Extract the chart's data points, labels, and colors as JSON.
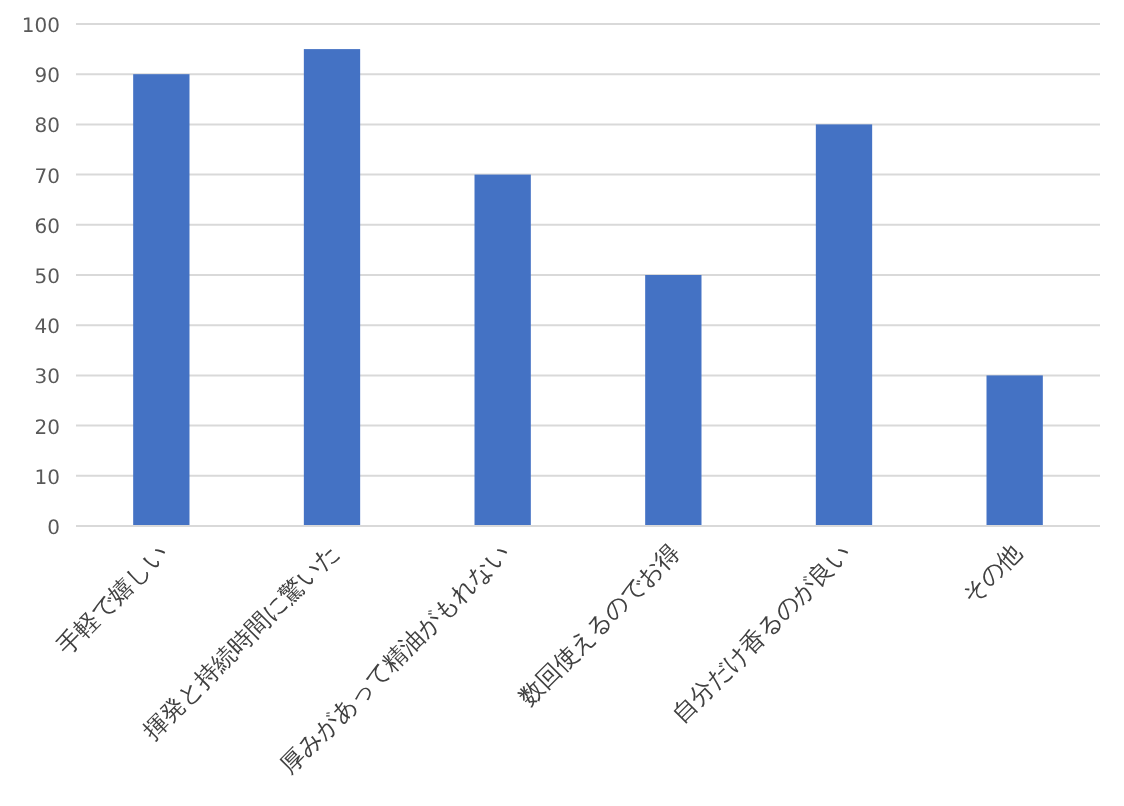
{
  "chart_data": {
    "type": "bar",
    "categories": [
      "手軽で嬉しい",
      "揮発と持続時間に驚いた",
      "厚みがあって精油がもれない",
      "数回使えるのでお得",
      "自分だけ香るのが良い",
      "その他"
    ],
    "values": [
      90,
      95,
      70,
      50,
      80,
      30
    ],
    "color": "#4472c4",
    "ylim": [
      0,
      100
    ],
    "yticks": [
      0,
      10,
      20,
      30,
      40,
      50,
      60,
      70,
      80,
      90,
      100
    ],
    "grid": "y"
  }
}
